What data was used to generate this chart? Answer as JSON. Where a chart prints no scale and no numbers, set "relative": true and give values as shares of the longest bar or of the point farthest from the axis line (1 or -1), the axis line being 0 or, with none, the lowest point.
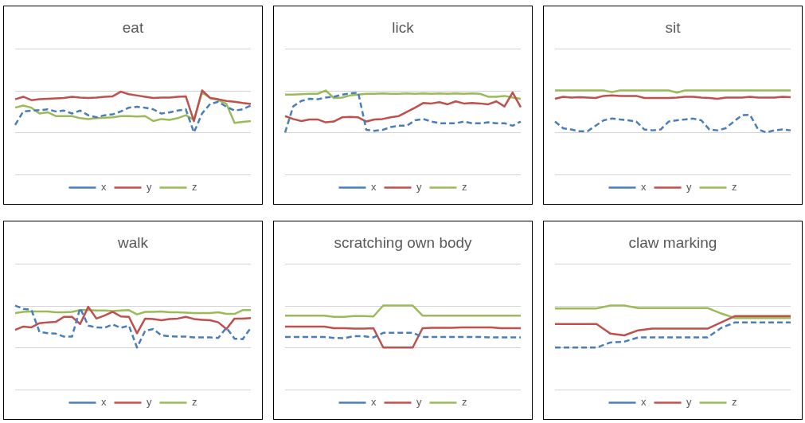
{
  "chart_data": [
    {
      "type": "line",
      "title": "eat",
      "relative": true,
      "legend": "bottom",
      "categories": [
        null,
        null,
        null,
        null,
        null,
        null,
        null,
        null,
        null,
        null,
        null,
        null,
        null,
        null,
        null,
        null,
        null,
        null,
        null,
        null,
        null,
        null,
        null,
        null,
        null,
        null,
        null,
        null,
        null,
        null
      ],
      "series": [
        {
          "name": "x",
          "color": "#4a7ebb",
          "line_style": "dashed",
          "values": [
            0.18,
            0.5,
            0.52,
            0.53,
            0.55,
            0.5,
            0.52,
            0.45,
            0.52,
            0.41,
            0.36,
            0.41,
            0.43,
            0.5,
            0.59,
            0.61,
            0.59,
            0.55,
            0.45,
            0.48,
            0.52,
            0.55,
            0,
            0.45,
            0.68,
            0.73,
            0.61,
            0.52,
            0.55,
            0.64
          ]
        },
        {
          "name": "y",
          "color": "#c0504d",
          "line_style": "solid",
          "values": [
            0.79,
            0.85,
            0.77,
            0.79,
            0.8,
            0.81,
            0.82,
            0.85,
            0.83,
            0.82,
            0.83,
            0.85,
            0.86,
            0.97,
            0.91,
            0.88,
            0.85,
            0.82,
            0.83,
            0.83,
            0.85,
            0.86,
            0.27,
            1,
            0.82,
            0.79,
            0.75,
            0.73,
            0.7,
            0.68
          ]
        },
        {
          "name": "z",
          "color": "#9bbb59",
          "line_style": "solid",
          "values": [
            0.59,
            0.64,
            0.59,
            0.45,
            0.48,
            0.39,
            0.39,
            0.39,
            0.34,
            0.32,
            0.34,
            0.35,
            0.36,
            0.39,
            0.39,
            0.38,
            0.39,
            0.27,
            0.32,
            0.3,
            0.34,
            0.41,
            0.3,
            0.95,
            0.82,
            0.77,
            0.68,
            0.23,
            0.25,
            0.27
          ]
        }
      ]
    },
    {
      "type": "line",
      "title": "lick",
      "relative": true,
      "legend": "bottom",
      "categories": [
        null,
        null,
        null,
        null,
        null,
        null,
        null,
        null,
        null,
        null,
        null,
        null,
        null,
        null,
        null,
        null,
        null,
        null,
        null,
        null,
        null,
        null,
        null,
        null,
        null,
        null,
        null,
        null,
        null,
        null
      ],
      "series": [
        {
          "name": "x",
          "color": "#4a7ebb",
          "line_style": "dashed",
          "values": [
            0,
            0.62,
            0.75,
            0.8,
            0.79,
            0.83,
            0.85,
            0.9,
            0.93,
            0.95,
            0.06,
            0.04,
            0.06,
            0.13,
            0.16,
            0.16,
            0.29,
            0.32,
            0.26,
            0.22,
            0.22,
            0.22,
            0.26,
            0.22,
            0.22,
            0.24,
            0.22,
            0.22,
            0.16,
            0.26
          ]
        },
        {
          "name": "y",
          "color": "#c0504d",
          "line_style": "solid",
          "values": [
            0.39,
            0.32,
            0.27,
            0.31,
            0.31,
            0.24,
            0.26,
            0.36,
            0.37,
            0.36,
            0.26,
            0.31,
            0.32,
            0.36,
            0.39,
            0.49,
            0.59,
            0.7,
            0.69,
            0.72,
            0.67,
            0.74,
            0.69,
            0.7,
            0.69,
            0.67,
            0.74,
            0.62,
            0.95,
            0.6
          ]
        },
        {
          "name": "z",
          "color": "#9bbb59",
          "line_style": "solid",
          "values": [
            0.9,
            0.9,
            0.91,
            0.92,
            0.92,
            1,
            0.82,
            0.83,
            0.88,
            0.9,
            0.92,
            0.92,
            0.93,
            0.92,
            0.92,
            0.93,
            0.92,
            0.93,
            0.92,
            0.93,
            0.92,
            0.93,
            0.92,
            0.93,
            0.92,
            0.85,
            0.85,
            0.87,
            0.83,
            0.8
          ]
        }
      ]
    },
    {
      "type": "line",
      "title": "sit",
      "relative": true,
      "legend": "bottom",
      "categories": [
        null,
        null,
        null,
        null,
        null,
        null,
        null,
        null,
        null,
        null,
        null,
        null,
        null,
        null,
        null,
        null,
        null,
        null,
        null,
        null,
        null,
        null,
        null,
        null,
        null,
        null,
        null,
        null,
        null,
        null
      ],
      "series": [
        {
          "name": "x",
          "color": "#4a7ebb",
          "line_style": "dashed",
          "values": [
            0.26,
            0.1,
            0.07,
            0.03,
            0.03,
            0.16,
            0.29,
            0.33,
            0.31,
            0.29,
            0.26,
            0.07,
            0.05,
            0.07,
            0.26,
            0.29,
            0.31,
            0.33,
            0.29,
            0.07,
            0.05,
            0.1,
            0.26,
            0.41,
            0.42,
            0.07,
            0,
            0.05,
            0.07,
            0.05
          ]
        },
        {
          "name": "y",
          "color": "#c0504d",
          "line_style": "solid",
          "values": [
            0.8,
            0.85,
            0.83,
            0.84,
            0.83,
            0.82,
            0.87,
            0.88,
            0.87,
            0.87,
            0.87,
            0.82,
            0.82,
            0.82,
            0.82,
            0.83,
            0.85,
            0.85,
            0.83,
            0.82,
            0.8,
            0.83,
            0.83,
            0.83,
            0.85,
            0.83,
            0.83,
            0.83,
            0.85,
            0.84
          ]
        },
        {
          "name": "z",
          "color": "#9bbb59",
          "line_style": "solid",
          "values": [
            1,
            1,
            1,
            1,
            1,
            1,
            1,
            0.96,
            1,
            1,
            1,
            1,
            1,
            1,
            1,
            0.95,
            1,
            1,
            1,
            1,
            1,
            1,
            1,
            1,
            1,
            1,
            1,
            1,
            1,
            1
          ]
        }
      ]
    },
    {
      "type": "line",
      "title": "walk",
      "relative": true,
      "legend": "bottom",
      "categories": [
        null,
        null,
        null,
        null,
        null,
        null,
        null,
        null,
        null,
        null,
        null,
        null,
        null,
        null,
        null,
        null,
        null,
        null,
        null,
        null,
        null,
        null,
        null,
        null,
        null,
        null,
        null,
        null,
        null,
        null
      ],
      "series": [
        {
          "name": "x",
          "color": "#4a7ebb",
          "line_style": "dashed",
          "values": [
            1,
            0.92,
            0.9,
            0.37,
            0.34,
            0.33,
            0.26,
            0.26,
            0.94,
            0.52,
            0.48,
            0.47,
            0.55,
            0.47,
            0.52,
            0,
            0.4,
            0.44,
            0.29,
            0.27,
            0.26,
            0.26,
            0.24,
            0.24,
            0.24,
            0.23,
            0.47,
            0.21,
            0.2,
            0.47
          ]
        },
        {
          "name": "y",
          "color": "#c0504d",
          "line_style": "solid",
          "values": [
            0.42,
            0.5,
            0.48,
            0.58,
            0.6,
            0.61,
            0.73,
            0.73,
            0.56,
            0.97,
            0.69,
            0.76,
            0.85,
            0.74,
            0.73,
            0.34,
            0.69,
            0.68,
            0.65,
            0.68,
            0.69,
            0.73,
            0.68,
            0.66,
            0.65,
            0.6,
            0.44,
            0.69,
            0.69,
            0.7
          ]
        },
        {
          "name": "z",
          "color": "#9bbb59",
          "line_style": "solid",
          "values": [
            0.82,
            0.85,
            0.86,
            0.86,
            0.86,
            0.84,
            0.84,
            0.85,
            0.89,
            0.89,
            0.88,
            0.88,
            0.87,
            0.88,
            0.89,
            0.79,
            0.85,
            0.85,
            0.86,
            0.84,
            0.84,
            0.83,
            0.82,
            0.82,
            0.82,
            0.84,
            0.8,
            0.8,
            0.89,
            0.89
          ]
        }
      ]
    },
    {
      "type": "line",
      "title": "scratching own body",
      "relative": true,
      "legend": "bottom",
      "categories": [
        null,
        null,
        null,
        null,
        null,
        null,
        null,
        null,
        null,
        null,
        null,
        null,
        null,
        null,
        null,
        null,
        null,
        null,
        null,
        null,
        null,
        null,
        null,
        null,
        null
      ],
      "series": [
        {
          "name": "x",
          "color": "#4a7ebb",
          "line_style": "dashed",
          "values": [
            0.25,
            0.25,
            0.25,
            0.25,
            0.25,
            0.23,
            0.22,
            0.27,
            0.27,
            0.24,
            0.35,
            0.35,
            0.35,
            0.35,
            0.25,
            0.25,
            0.25,
            0.25,
            0.25,
            0.25,
            0.25,
            0.24,
            0.24,
            0.24,
            0.24
          ]
        },
        {
          "name": "y",
          "color": "#c0504d",
          "line_style": "solid",
          "values": [
            0.5,
            0.5,
            0.5,
            0.5,
            0.5,
            0.46,
            0.46,
            0.45,
            0.45,
            0.46,
            0,
            0,
            0,
            0,
            0.46,
            0.47,
            0.47,
            0.47,
            0.48,
            0.48,
            0.48,
            0.48,
            0.46,
            0.46,
            0.46
          ]
        },
        {
          "name": "z",
          "color": "#9bbb59",
          "line_style": "solid",
          "values": [
            0.76,
            0.76,
            0.76,
            0.76,
            0.76,
            0.73,
            0.73,
            0.75,
            0.75,
            0.74,
            1,
            1,
            1,
            1,
            0.76,
            0.76,
            0.76,
            0.76,
            0.76,
            0.76,
            0.76,
            0.76,
            0.76,
            0.76,
            0.76
          ]
        }
      ]
    },
    {
      "type": "line",
      "title": "claw marking",
      "relative": true,
      "legend": "bottom",
      "categories": [
        null,
        null,
        null,
        null,
        null,
        null,
        null,
        null,
        null,
        null,
        null,
        null,
        null,
        null,
        null,
        null,
        null,
        null
      ],
      "series": [
        {
          "name": "x",
          "color": "#4a7ebb",
          "line_style": "dashed",
          "values": [
            0,
            0,
            0,
            0,
            0.12,
            0.14,
            0.24,
            0.24,
            0.24,
            0.24,
            0.24,
            0.24,
            0.47,
            0.6,
            0.6,
            0.6,
            0.6,
            0.6
          ]
        },
        {
          "name": "y",
          "color": "#c0504d",
          "line_style": "solid",
          "values": [
            0.56,
            0.56,
            0.56,
            0.56,
            0.33,
            0.29,
            0.41,
            0.45,
            0.45,
            0.45,
            0.45,
            0.45,
            0.6,
            0.75,
            0.75,
            0.75,
            0.75,
            0.75
          ]
        },
        {
          "name": "z",
          "color": "#9bbb59",
          "line_style": "solid",
          "values": [
            0.93,
            0.93,
            0.93,
            0.93,
            1,
            1,
            0.94,
            0.94,
            0.94,
            0.94,
            0.94,
            0.94,
            0.81,
            0.7,
            0.7,
            0.7,
            0.7,
            0.7
          ]
        }
      ]
    }
  ]
}
